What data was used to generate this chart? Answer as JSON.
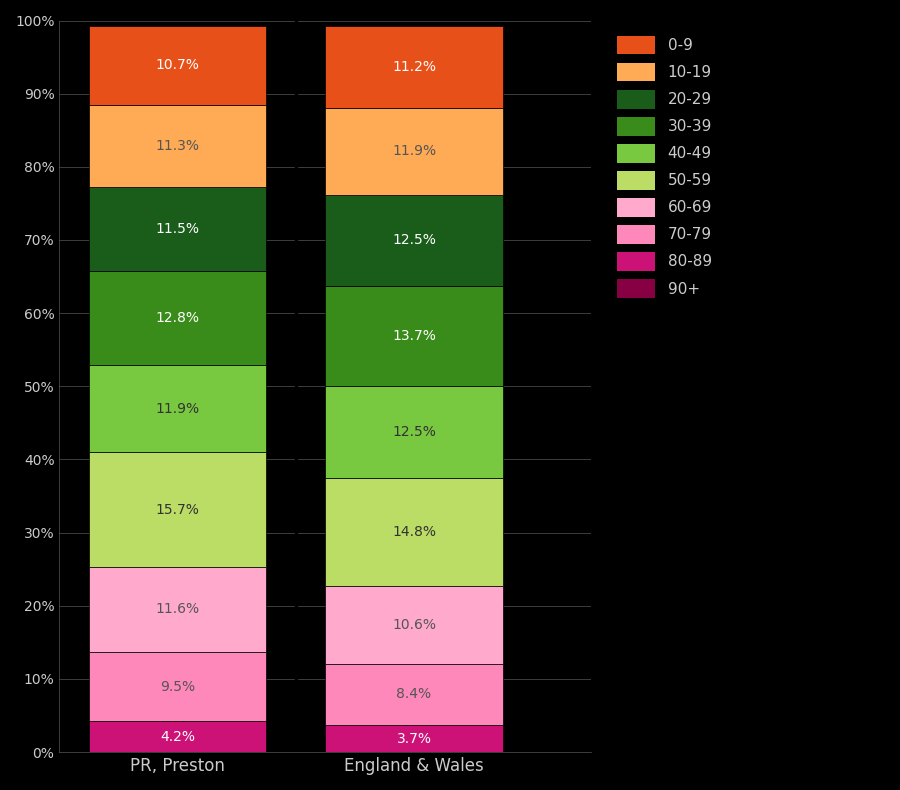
{
  "categories": [
    "PR, Preston",
    "England & Wales"
  ],
  "age_order_bottom_to_top": [
    "90+",
    "80-89",
    "70-79",
    "60-69",
    "50-59",
    "40-49",
    "30-39",
    "20-29",
    "10-19",
    "0-9"
  ],
  "preston_values": [
    0.0,
    4.2,
    9.5,
    11.6,
    15.7,
    11.9,
    12.8,
    11.5,
    11.3,
    10.7
  ],
  "ew_values": [
    0.0,
    3.7,
    8.4,
    10.6,
    14.8,
    12.5,
    13.7,
    12.5,
    11.9,
    11.2
  ],
  "label_preston": [
    "",
    "4.2%",
    "9.5%",
    "11.6%",
    "15.7%",
    "11.9%",
    "12.8%",
    "11.5%",
    "11.3%",
    "10.7%"
  ],
  "label_ew": [
    "",
    "3.7%",
    "8.4%",
    "10.6%",
    "14.8%",
    "12.5%",
    "13.7%",
    "12.5%",
    "11.9%",
    "11.2%"
  ],
  "colors": {
    "0-9": "#E8501A",
    "10-19": "#FFAA55",
    "20-29": "#1A5C1A",
    "30-39": "#3A8C1A",
    "40-49": "#78C840",
    "50-59": "#BBDD66",
    "60-69": "#FFAACC",
    "70-79": "#FF88BB",
    "80-89": "#CC1177",
    "90+": "#880044"
  },
  "text_colors": {
    "0-9": "#ffffff",
    "10-19": "#555555",
    "20-29": "#ffffff",
    "30-39": "#ffffff",
    "40-49": "#333333",
    "50-59": "#333333",
    "60-69": "#555555",
    "70-79": "#555555",
    "80-89": "#ffffff",
    "90+": "#ffffff"
  },
  "background_color": "#000000",
  "text_color": "#cccccc",
  "ylabel_ticks": [
    0,
    10,
    20,
    30,
    40,
    50,
    60,
    70,
    80,
    90,
    100
  ],
  "legend_order": [
    "0-9",
    "10-19",
    "20-29",
    "30-39",
    "40-49",
    "50-59",
    "60-69",
    "70-79",
    "80-89",
    "90+"
  ]
}
